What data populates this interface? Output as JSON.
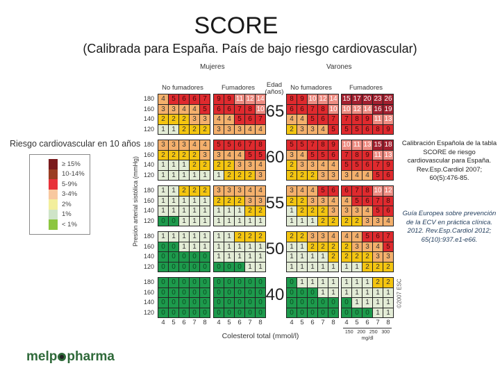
{
  "title": "SCORE",
  "subtitle": "(Calibrada para España. País de bajo riesgo cardiovascular)",
  "legend": {
    "title": "Riesgo cardiovascular en 10 años",
    "items": [
      {
        "label": "≥ 15%",
        "color": "#7a1a1c"
      },
      {
        "label": "10-14%",
        "color": "#9a3e22"
      },
      {
        "label": "5-9%",
        "color": "#e8323a"
      },
      {
        "label": "3-4%",
        "color": "#f8c8a0"
      },
      {
        "label": "2%",
        "color": "#f3ef9c"
      },
      {
        "label": "1%",
        "color": "#cfe4c8"
      },
      {
        "label": "< 1%",
        "color": "#8cc640"
      }
    ]
  },
  "references": {
    "ref1": "Calibración Española de la tabla SCORE de riesgo cardiovascular para España. Rev.Esp.Cardiol 2007; 60(5):476-85.",
    "ref2": "Guía Europea sobre prevención de la ECV en práctica clínica. 2012. Rev.Esp.Cardiol 2012; 65(10):937.e1-e66."
  },
  "logo": {
    "text_before": "melp",
    "text_after": "pharma"
  },
  "chart_data": {
    "type": "heatmap",
    "sexes": [
      "Mujeres",
      "Varones"
    ],
    "groups": [
      "No fumadores",
      "Fumadores"
    ],
    "age_label": "Edad (años)",
    "ages": [
      "65",
      "60",
      "55",
      "50",
      "40"
    ],
    "sbp_ticks": [
      "180",
      "160",
      "140",
      "120"
    ],
    "chol_ticks": [
      "4",
      "5",
      "6",
      "7",
      "8"
    ],
    "xlabel": "Colesterol total (mmol/l)",
    "ylabel": "Presión arterial sistólica (mmHg)",
    "mgdl_ticks": [
      "150",
      "200",
      "250",
      "300"
    ],
    "mgdl_unit": "mg/dl",
    "copyright": "©2007 ESC",
    "cell_colors": {
      "0": "#1d9a4c",
      "1": "#e3ecd6",
      "2": "#f4c510",
      "3-4": "#f4b06c",
      "5-9": "#df2a2e",
      "10-14": "#ee8c82",
      "15+": "#a3202f"
    },
    "values": {
      "65": {
        "w_ns": [
          [
            4,
            5,
            6,
            6,
            7
          ],
          [
            3,
            3,
            4,
            4,
            5
          ],
          [
            2,
            2,
            2,
            3,
            3
          ],
          [
            1,
            1,
            2,
            2,
            2
          ]
        ],
        "w_s": [
          [
            9,
            9,
            11,
            12,
            14
          ],
          [
            6,
            6,
            7,
            8,
            10
          ],
          [
            4,
            4,
            5,
            6,
            7
          ],
          [
            3,
            3,
            3,
            4,
            4
          ]
        ],
        "m_ns": [
          [
            8,
            9,
            10,
            12,
            14
          ],
          [
            6,
            6,
            7,
            8,
            10
          ],
          [
            4,
            4,
            5,
            6,
            7
          ],
          [
            2,
            3,
            3,
            4,
            5
          ]
        ],
        "m_s": [
          [
            15,
            17,
            20,
            23,
            26
          ],
          [
            10,
            12,
            14,
            16,
            19
          ],
          [
            7,
            8,
            9,
            11,
            13
          ],
          [
            5,
            5,
            6,
            8,
            9
          ]
        ]
      },
      "60": {
        "w_ns": [
          [
            3,
            3,
            3,
            4,
            4
          ],
          [
            2,
            2,
            2,
            2,
            3
          ],
          [
            1,
            1,
            1,
            2,
            2
          ],
          [
            1,
            1,
            1,
            1,
            1
          ]
        ],
        "w_s": [
          [
            5,
            5,
            6,
            7,
            8
          ],
          [
            3,
            4,
            4,
            5,
            5
          ],
          [
            2,
            2,
            3,
            3,
            4
          ],
          [
            1,
            2,
            2,
            2,
            3
          ]
        ],
        "m_ns": [
          [
            5,
            5,
            7,
            8,
            9
          ],
          [
            3,
            4,
            5,
            5,
            6
          ],
          [
            2,
            3,
            3,
            4,
            4
          ],
          [
            2,
            2,
            2,
            3,
            3
          ]
        ],
        "m_s": [
          [
            10,
            11,
            13,
            15,
            18
          ],
          [
            7,
            8,
            9,
            11,
            13
          ],
          [
            5,
            5,
            6,
            7,
            9
          ],
          [
            3,
            4,
            4,
            5,
            6
          ]
        ]
      },
      "55": {
        "w_ns": [
          [
            1,
            1,
            2,
            2,
            2
          ],
          [
            1,
            1,
            1,
            1,
            1
          ],
          [
            1,
            1,
            1,
            1,
            1
          ],
          [
            0,
            0,
            1,
            1,
            1
          ]
        ],
        "w_s": [
          [
            3,
            3,
            3,
            4,
            4
          ],
          [
            2,
            2,
            2,
            3,
            3
          ],
          [
            1,
            1,
            1,
            2,
            2
          ],
          [
            1,
            1,
            1,
            1,
            1
          ]
        ],
        "m_ns": [
          [
            3,
            4,
            4,
            5,
            6
          ],
          [
            2,
            2,
            3,
            3,
            4
          ],
          [
            1,
            2,
            2,
            2,
            3
          ],
          [
            1,
            1,
            1,
            2,
            2
          ]
        ],
        "m_s": [
          [
            6,
            7,
            8,
            10,
            12
          ],
          [
            4,
            5,
            6,
            7,
            8
          ],
          [
            3,
            3,
            4,
            5,
            6
          ],
          [
            2,
            2,
            3,
            3,
            4
          ]
        ]
      },
      "50": {
        "w_ns": [
          [
            1,
            1,
            1,
            1,
            1
          ],
          [
            0,
            0,
            1,
            1,
            1
          ],
          [
            0,
            0,
            0,
            0,
            0
          ],
          [
            0,
            0,
            0,
            0,
            0
          ]
        ],
        "w_s": [
          [
            1,
            1,
            2,
            2,
            2
          ],
          [
            1,
            1,
            1,
            1,
            1
          ],
          [
            1,
            1,
            1,
            1,
            1
          ],
          [
            0,
            0,
            0,
            1,
            1
          ]
        ],
        "m_ns": [
          [
            2,
            2,
            3,
            3,
            4
          ],
          [
            1,
            1,
            2,
            2,
            2
          ],
          [
            1,
            1,
            1,
            1,
            2
          ],
          [
            1,
            1,
            1,
            1,
            1
          ]
        ],
        "m_s": [
          [
            4,
            4,
            5,
            6,
            7
          ],
          [
            2,
            3,
            3,
            4,
            5
          ],
          [
            2,
            2,
            2,
            3,
            3
          ],
          [
            1,
            1,
            2,
            2,
            2
          ]
        ]
      },
      "40": {
        "w_ns": [
          [
            0,
            0,
            0,
            0,
            0
          ],
          [
            0,
            0,
            0,
            0,
            0
          ],
          [
            0,
            0,
            0,
            0,
            0
          ],
          [
            0,
            0,
            0,
            0,
            0
          ]
        ],
        "w_s": [
          [
            0,
            0,
            0,
            0,
            0
          ],
          [
            0,
            0,
            0,
            0,
            0
          ],
          [
            0,
            0,
            0,
            0,
            0
          ],
          [
            0,
            0,
            0,
            0,
            0
          ]
        ],
        "m_ns": [
          [
            0,
            1,
            1,
            1,
            1
          ],
          [
            0,
            0,
            0,
            1,
            1
          ],
          [
            0,
            0,
            0,
            0,
            0
          ],
          [
            0,
            0,
            0,
            0,
            0
          ]
        ],
        "m_s": [
          [
            1,
            1,
            1,
            2,
            2
          ],
          [
            1,
            1,
            1,
            1,
            1
          ],
          [
            0,
            1,
            1,
            1,
            1
          ],
          [
            0,
            0,
            0,
            1,
            1
          ]
        ]
      }
    }
  }
}
